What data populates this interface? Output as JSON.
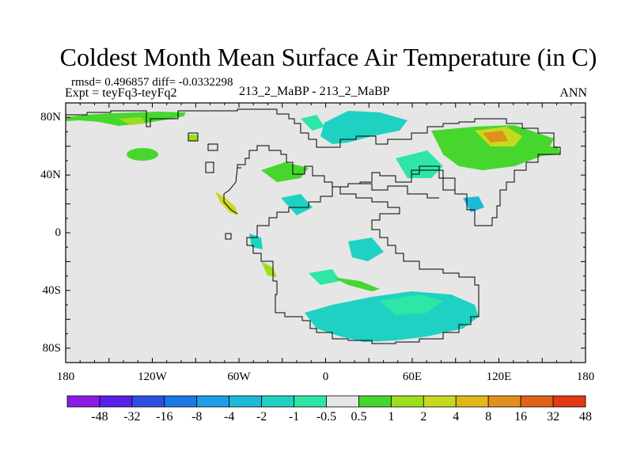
{
  "title": "Coldest Month Mean Surface Air Temperature (in C)",
  "subtitle": {
    "rmsd_line": "rmsd= 0.496857 diff= -0.0332298",
    "expt_line": "Expt = teyFq3-teyFq2",
    "center_line": "213_2_MaBP - 213_2_MaBP",
    "right_label": "ANN"
  },
  "axes": {
    "lat_labels": [
      "80N",
      "40N",
      "0",
      "40S",
      "80S"
    ],
    "lat_values": [
      80,
      40,
      0,
      -40,
      -80
    ],
    "lon_labels": [
      "180",
      "120W",
      "60W",
      "0",
      "60E",
      "120E",
      "180"
    ],
    "lon_values": [
      -180,
      -120,
      -60,
      0,
      60,
      120,
      180
    ],
    "lat_range": [
      -90,
      90
    ],
    "lon_range": [
      -180,
      180
    ]
  },
  "colorbar": {
    "levels": [
      "-48",
      "-32",
      "-16",
      "-8",
      "-4",
      "-2",
      "-1",
      "-0.5",
      "0.5",
      "1",
      "2",
      "4",
      "8",
      "16",
      "32",
      "48"
    ],
    "colors": [
      "#8c1ae6",
      "#5a1ee6",
      "#2d4fe0",
      "#1e78e6",
      "#1f9ee6",
      "#1cbad8",
      "#1fd1c2",
      "#2ee6a6",
      "#e6e6e6",
      "#46d62e",
      "#9ede1e",
      "#c8d81e",
      "#e0b81c",
      "#e0901c",
      "#e0621a",
      "#e03a14"
    ]
  },
  "map": {
    "background": "#e6e6e6",
    "outline_color": "#000000"
  }
}
